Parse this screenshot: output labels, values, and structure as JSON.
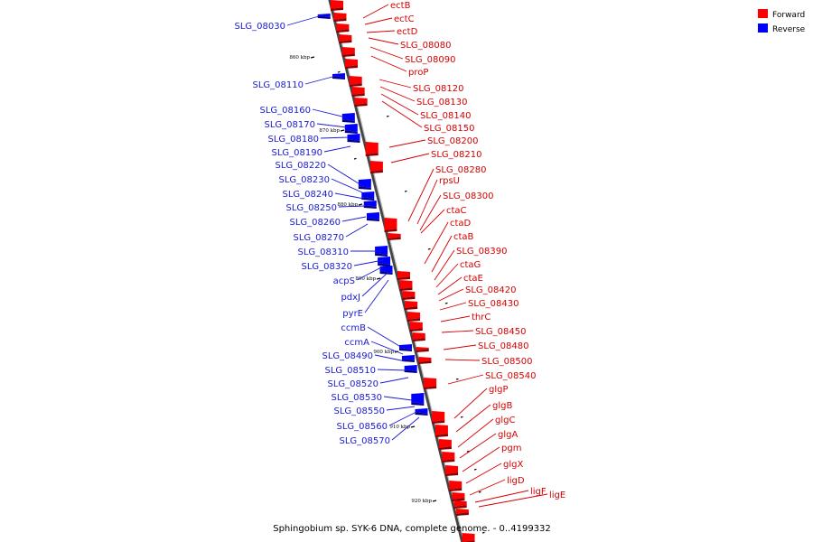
{
  "legend": {
    "forward": {
      "label": "Forward",
      "color": "#ff0000"
    },
    "reverse": {
      "label": "Reverse",
      "color": "#0000ff"
    }
  },
  "caption": "Sphingobium sp. SYK-6 DNA, complete genome. - 0..4199332",
  "ticks": [
    "860 kbp",
    "870 kbp",
    "880 kbp",
    "890 kbp",
    "900 kbp",
    "910 kbp",
    "920 kbp"
  ],
  "forward_labels": [
    "ectB",
    "ectC",
    "ectD",
    "SLG_08080",
    "SLG_08090",
    "proP",
    "SLG_08120",
    "SLG_08130",
    "SLG_08140",
    "SLG_08150",
    "SLG_08200",
    "SLG_08210",
    "SLG_08280",
    "rpsU",
    "SLG_08300",
    "ctaC",
    "ctaD",
    "ctaB",
    "SLG_08390",
    "ctaG",
    "ctaE",
    "SLG_08420",
    "SLG_08430",
    "thrC",
    "SLG_08450",
    "SLG_08480",
    "SLG_08500",
    "SLG_08540",
    "glgP",
    "glgB",
    "glgC",
    "glgA",
    "pgm",
    "glgX",
    "ligD",
    "ligF",
    "ligE"
  ],
  "reverse_labels": [
    "SLG_08030",
    "SLG_08110",
    "SLG_08160",
    "SLG_08170",
    "SLG_08180",
    "SLG_08190",
    "SLG_08220",
    "SLG_08230",
    "SLG_08240",
    "SLG_08250",
    "SLG_08260",
    "SLG_08270",
    "SLG_08310",
    "SLG_08320",
    "acpS",
    "pdxJ",
    "pyrE",
    "ccmB",
    "ccmA",
    "SLG_08490",
    "SLG_08510",
    "SLG_08520",
    "SLG_08530",
    "SLG_08550",
    "SLG_08560",
    "SLG_08570"
  ]
}
